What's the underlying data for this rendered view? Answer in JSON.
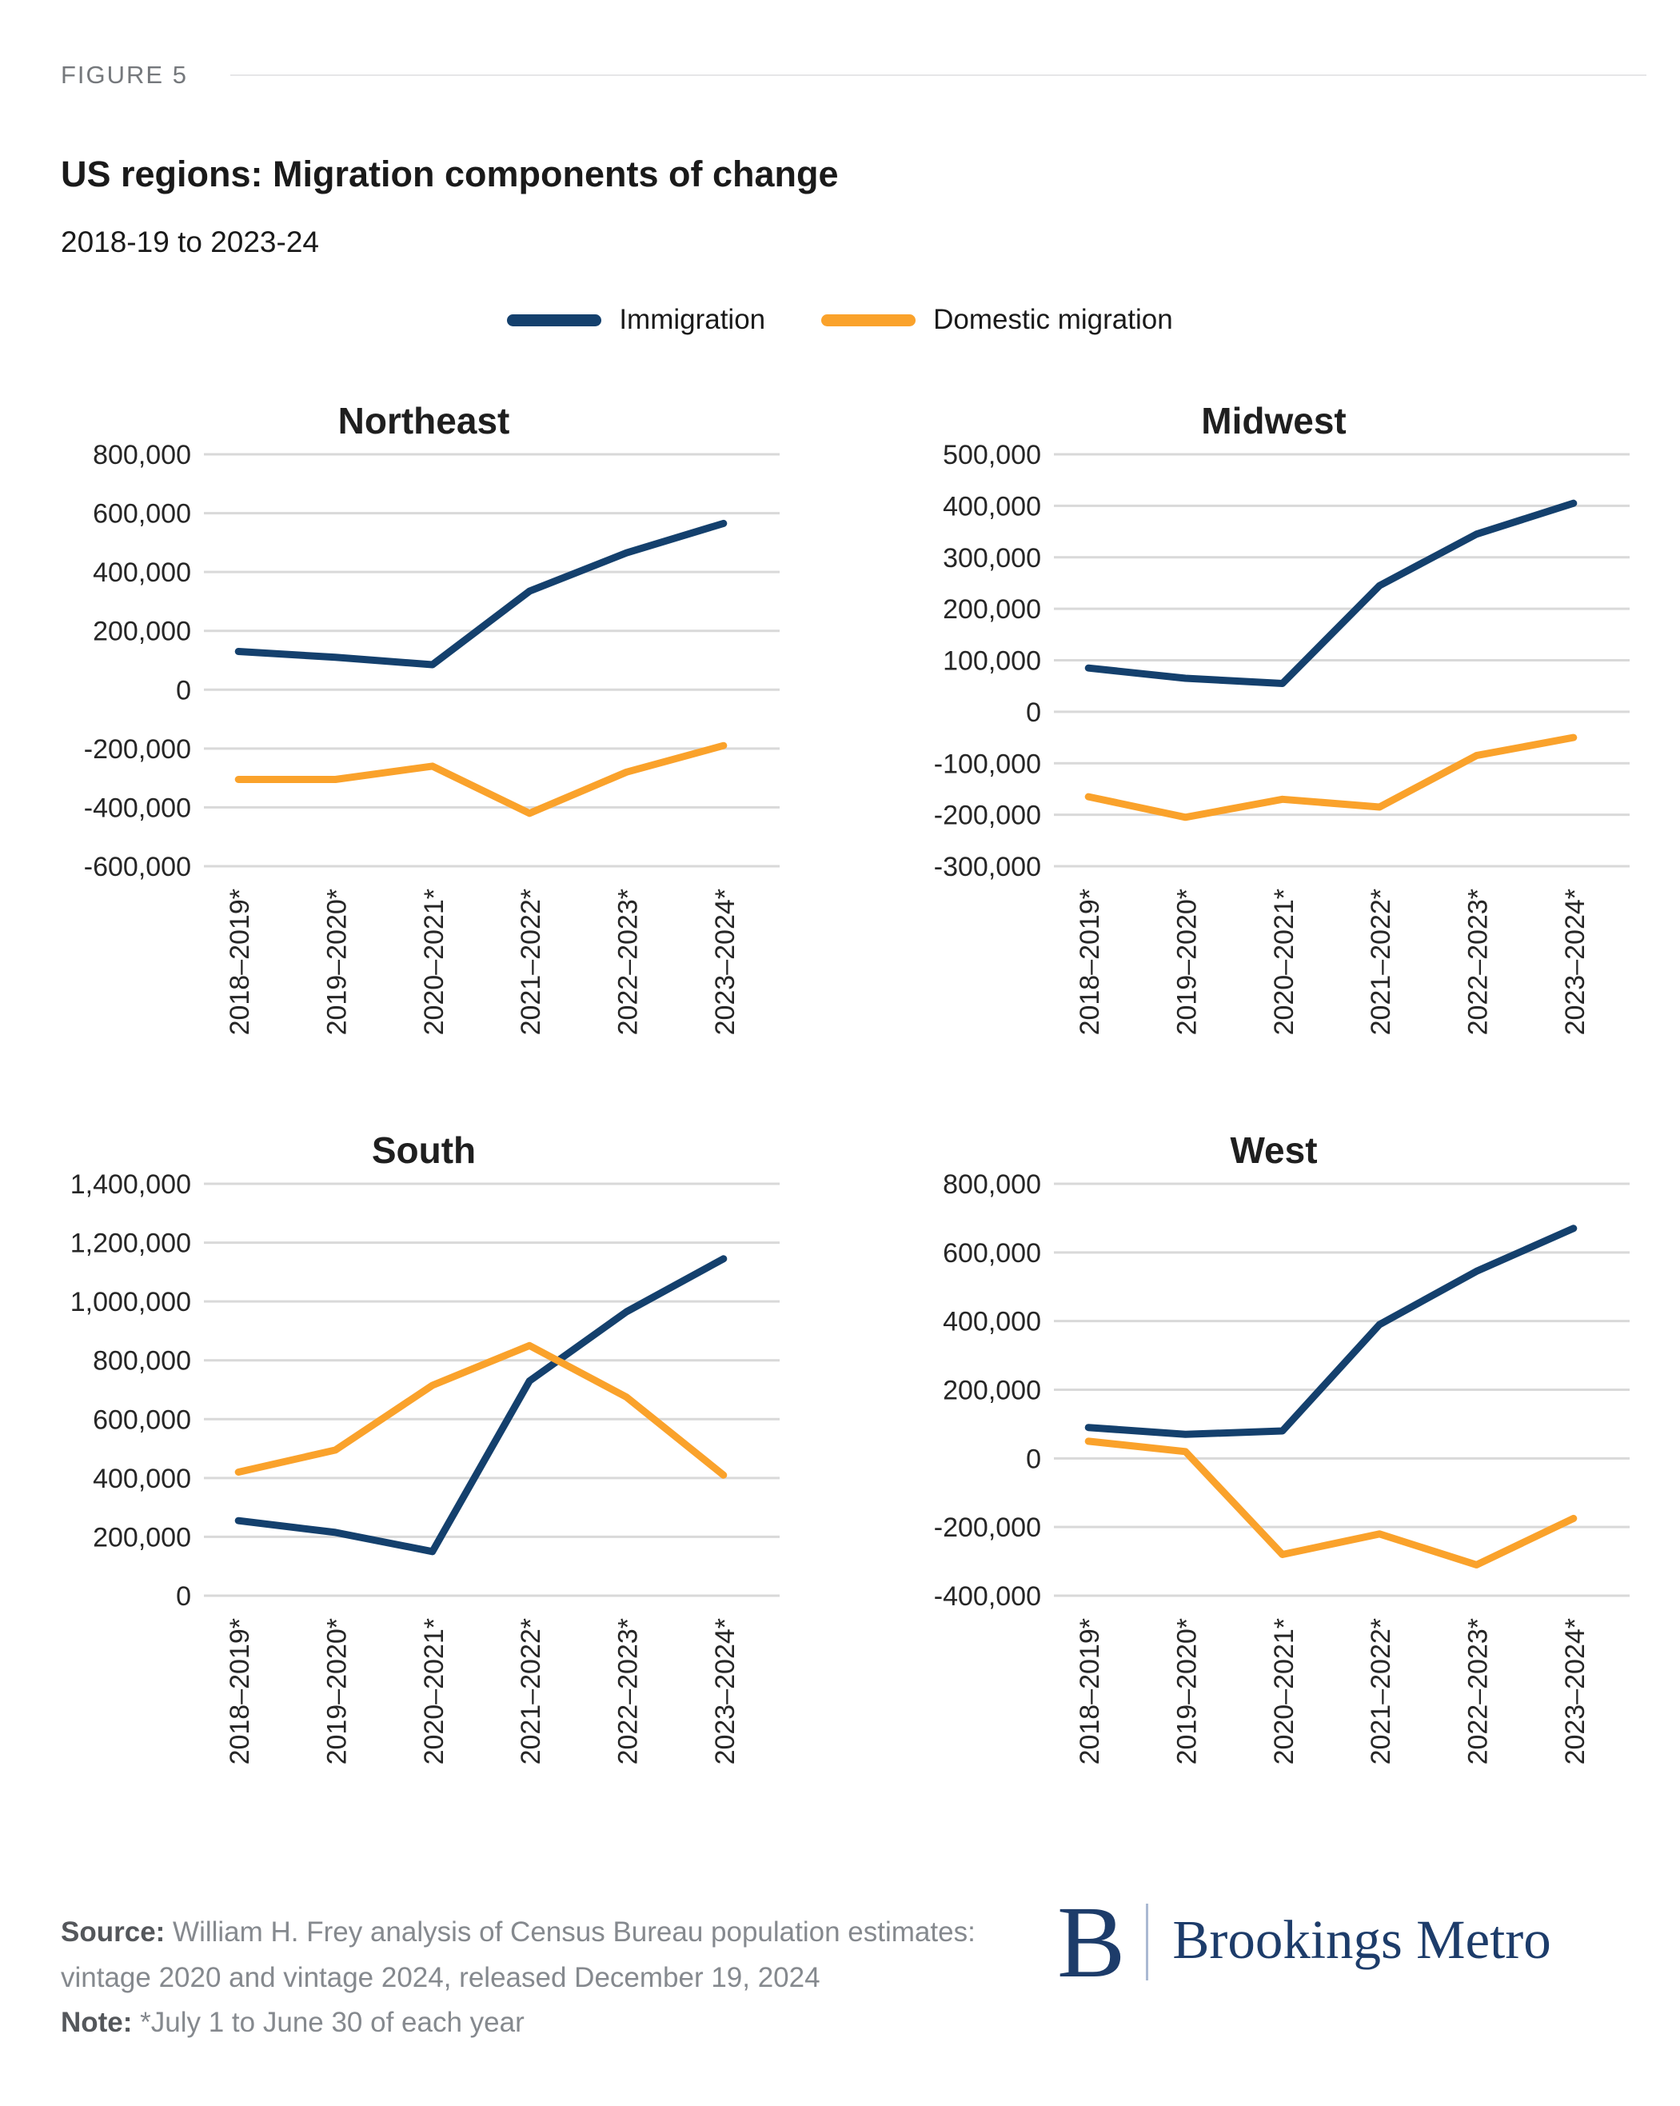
{
  "figure_label": "FIGURE 5",
  "title": "US regions: Migration components of change",
  "subtitle": "2018-19 to 2023-24",
  "legend": [
    {
      "label": "Immigration",
      "color": "#14406D"
    },
    {
      "label": "Domestic migration",
      "color": "#FAA22B"
    }
  ],
  "colors": {
    "immigration": "#14406D",
    "domestic_migration": "#FAA22B",
    "gridline": "#D9D9D9",
    "axis_text": "#262626",
    "chart_title_text": "#1F1F1F",
    "logo_navy": "#1D3C6A"
  },
  "chart_data": [
    {
      "type": "line",
      "title": "Northeast",
      "categories": [
        "2018–2019*",
        "2019–2020*",
        "2020–2021*",
        "2021–2022*",
        "2022–2023*",
        "2023–2024*"
      ],
      "series": [
        {
          "name": "Immigration",
          "color": "#14406D",
          "values": [
            130000,
            110000,
            85000,
            335000,
            465000,
            565000
          ]
        },
        {
          "name": "Domestic migration",
          "color": "#FAA22B",
          "values": [
            -305000,
            -305000,
            -260000,
            -420000,
            -280000,
            -190000
          ]
        }
      ],
      "ylim": [
        -600000,
        800000
      ],
      "ytick_step": 200000,
      "grid": true,
      "legend_position": "shared-top"
    },
    {
      "type": "line",
      "title": "Midwest",
      "categories": [
        "2018–2019*",
        "2019–2020*",
        "2020–2021*",
        "2021–2022*",
        "2022–2023*",
        "2023–2024*"
      ],
      "series": [
        {
          "name": "Immigration",
          "color": "#14406D",
          "values": [
            85000,
            65000,
            55000,
            245000,
            345000,
            405000
          ]
        },
        {
          "name": "Domestic migration",
          "color": "#FAA22B",
          "values": [
            -165000,
            -205000,
            -170000,
            -185000,
            -85000,
            -50000
          ]
        }
      ],
      "ylim": [
        -300000,
        500000
      ],
      "ytick_step": 100000,
      "grid": true,
      "legend_position": "shared-top"
    },
    {
      "type": "line",
      "title": "South",
      "categories": [
        "2018–2019*",
        "2019–2020*",
        "2020–2021*",
        "2021–2022*",
        "2022–2023*",
        "2023–2024*"
      ],
      "series": [
        {
          "name": "Immigration",
          "color": "#14406D",
          "values": [
            255000,
            215000,
            150000,
            730000,
            965000,
            1145000
          ]
        },
        {
          "name": "Domestic migration",
          "color": "#FAA22B",
          "values": [
            420000,
            495000,
            715000,
            850000,
            675000,
            410000
          ]
        }
      ],
      "ylim": [
        0,
        1400000
      ],
      "ytick_step": 200000,
      "grid": true,
      "legend_position": "shared-top"
    },
    {
      "type": "line",
      "title": "West",
      "categories": [
        "2018–2019*",
        "2019–2020*",
        "2020–2021*",
        "2021–2022*",
        "2022–2023*",
        "2023–2024*"
      ],
      "series": [
        {
          "name": "Immigration",
          "color": "#14406D",
          "values": [
            90000,
            70000,
            80000,
            390000,
            545000,
            670000
          ]
        },
        {
          "name": "Domestic migration",
          "color": "#FAA22B",
          "values": [
            50000,
            20000,
            -280000,
            -220000,
            -310000,
            -175000
          ]
        }
      ],
      "ylim": [
        -400000,
        800000
      ],
      "ytick_step": 200000,
      "grid": true,
      "legend_position": "shared-top"
    }
  ],
  "footer": {
    "source_label": "Source:",
    "source_text": " William H. Frey analysis of Census Bureau population estimates: vintage 2020 and vintage 2024, released December 19, 2024",
    "note_label": "Note:",
    "note_text": " *July 1 to June 30 of each year"
  },
  "logo": {
    "monogram": "B",
    "wordmark": "Brookings Metro"
  }
}
